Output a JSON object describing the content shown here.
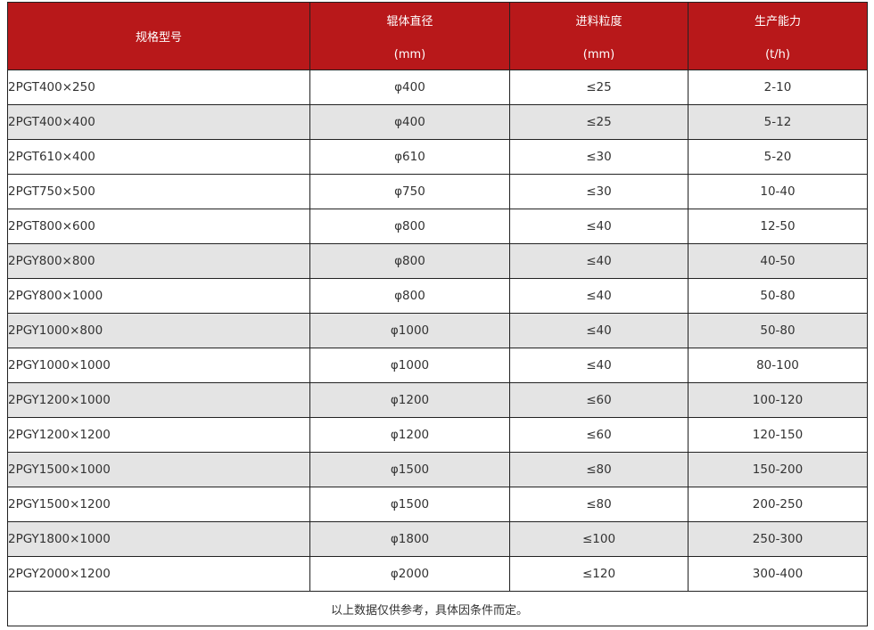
{
  "header": {
    "model": "规格型号",
    "diameter": {
      "title": "辊体直径",
      "unit": "(mm)"
    },
    "feed": {
      "title": "进料粒度",
      "unit": "(mm)"
    },
    "capacity": {
      "title": "生产能力",
      "unit": "(t/h)"
    },
    "background_color": "#b8181a"
  },
  "rows": [
    {
      "model": "2PGT400×250",
      "diameter": "φ400",
      "feed": "≤25",
      "capacity": "2-10",
      "shaded": false
    },
    {
      "model": "2PGT400×400",
      "diameter": "φ400",
      "feed": "≤25",
      "capacity": "5-12",
      "shaded": true
    },
    {
      "model": "2PGT610×400",
      "diameter": "φ610",
      "feed": "≤30",
      "capacity": "5-20",
      "shaded": false
    },
    {
      "model": "2PGT750×500",
      "diameter": "φ750",
      "feed": "≤30",
      "capacity": "10-40",
      "shaded": false
    },
    {
      "model": "2PGT800×600",
      "diameter": "φ800",
      "feed": "≤40",
      "capacity": "12-50",
      "shaded": false
    },
    {
      "model": "2PGY800×800",
      "diameter": "φ800",
      "feed": "≤40",
      "capacity": "40-50",
      "shaded": true
    },
    {
      "model": "2PGY800×1000",
      "diameter": "φ800",
      "feed": "≤40",
      "capacity": "50-80",
      "shaded": false
    },
    {
      "model": "2PGY1000×800",
      "diameter": "φ1000",
      "feed": "≤40",
      "capacity": "50-80",
      "shaded": true
    },
    {
      "model": "2PGY1000×1000",
      "diameter": "φ1000",
      "feed": "≤40",
      "capacity": "80-100",
      "shaded": false
    },
    {
      "model": "2PGY1200×1000",
      "diameter": "φ1200",
      "feed": "≤60",
      "capacity": "100-120",
      "shaded": true
    },
    {
      "model": "2PGY1200×1200",
      "diameter": "φ1200",
      "feed": "≤60",
      "capacity": "120-150",
      "shaded": false
    },
    {
      "model": "2PGY1500×1000",
      "diameter": "φ1500",
      "feed": "≤80",
      "capacity": "150-200",
      "shaded": true
    },
    {
      "model": "2PGY1500×1200",
      "diameter": "φ1500",
      "feed": "≤80",
      "capacity": "200-250",
      "shaded": false
    },
    {
      "model": "2PGY1800×1000",
      "diameter": "φ1800",
      "feed": "≤100",
      "capacity": "250-300",
      "shaded": true
    },
    {
      "model": "2PGY2000×1200",
      "diameter": "φ2000",
      "feed": "≤120",
      "capacity": "300-400",
      "shaded": false
    }
  ],
  "footer_note": "以上数据仅供参考，具体因条件而定。"
}
